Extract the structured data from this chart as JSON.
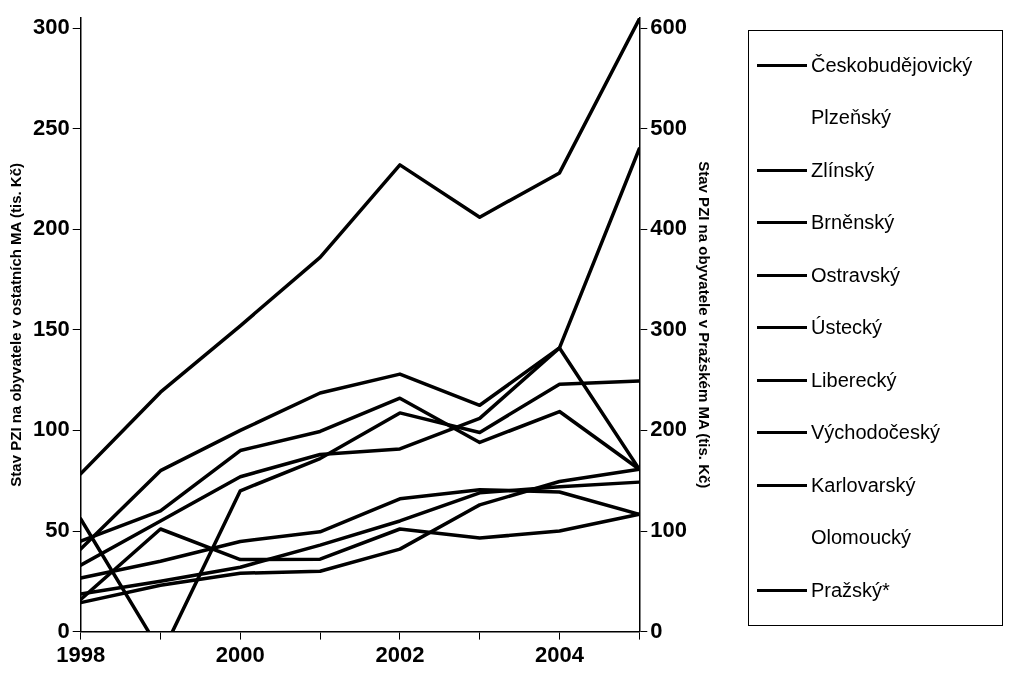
{
  "chart_data": {
    "type": "line",
    "xlabel": null,
    "ylabel": "Stav PZI na obyvatele v ostatních MA (tis. Kč)",
    "y2label": "Stav PZI na obyvatele v Pražském MA (tis. Kč)",
    "x": [
      1998,
      1999,
      2000,
      2001,
      2002,
      2003,
      2004,
      2005
    ],
    "xlim": [
      1998,
      2005
    ],
    "xticks": [
      1998,
      {
        "value": 1999,
        "label": null
      },
      2000,
      {
        "value": 2001,
        "label": null
      },
      2002,
      {
        "value": 2003,
        "label": null
      },
      2004,
      {
        "value": 2005,
        "label": null
      }
    ],
    "ylim": [
      0,
      305
    ],
    "yticks": [
      0,
      50,
      100,
      150,
      200,
      250,
      300
    ],
    "y2lim": [
      0,
      610
    ],
    "y2ticks": [
      0,
      100,
      200,
      300,
      400,
      500,
      600
    ],
    "grid": false,
    "legend": "right",
    "marker": "none",
    "line_style": "solid",
    "series": [
      {
        "name": "Českobudějovický",
        "color": "#000000",
        "x": [
          1998,
          1998.85,
          1999,
          1999.15,
          2000,
          2001,
          2002,
          2003,
          2004,
          2005
        ],
        "values": [
          56,
          0,
          null,
          0,
          70,
          86,
          108.7,
          99,
          123,
          124.6
        ]
      },
      {
        "name": "Plzeňský",
        "values": [
          null,
          null,
          null,
          null,
          null,
          null,
          null,
          null
        ]
      },
      {
        "name": "Zlínský",
        "color": "#000000",
        "values": [
          41,
          80,
          100,
          118.6,
          128,
          112.5,
          141,
          80.7
        ]
      },
      {
        "name": "Brněnský",
        "color": "#000000",
        "values": [
          33,
          55,
          77,
          88,
          90.8,
          106,
          141,
          240
        ]
      },
      {
        "name": "Ostravský",
        "color": "#000000",
        "values": [
          45,
          60,
          90,
          99.5,
          116,
          94,
          109.4,
          80.7
        ]
      },
      {
        "name": "Ústecký",
        "color": "#000000",
        "values": [
          26.6,
          35,
          44.8,
          49.6,
          66,
          70.5,
          69.4,
          58.3
        ]
      },
      {
        "name": "Liberecký",
        "color": "#000000",
        "values": [
          16,
          51,
          35.8,
          36,
          51,
          46.5,
          50,
          58.3
        ]
      },
      {
        "name": "Východočeský",
        "color": "#000000",
        "values": [
          18.7,
          25,
          32,
          43,
          55,
          69,
          72,
          74.3
        ]
      },
      {
        "name": "Karlovarský",
        "color": "#000000",
        "values": [
          14.4,
          23,
          29,
          30,
          41,
          63,
          74.6,
          80.7
        ]
      },
      {
        "name": "Olomoucký",
        "values": [
          null,
          null,
          null,
          null,
          null,
          null,
          null,
          null
        ]
      },
      {
        "name": "Pražský*",
        "color": "#000000",
        "axis": "y2",
        "values": [
          157,
          238,
          304,
          372,
          464,
          412,
          456,
          609
        ]
      }
    ]
  }
}
